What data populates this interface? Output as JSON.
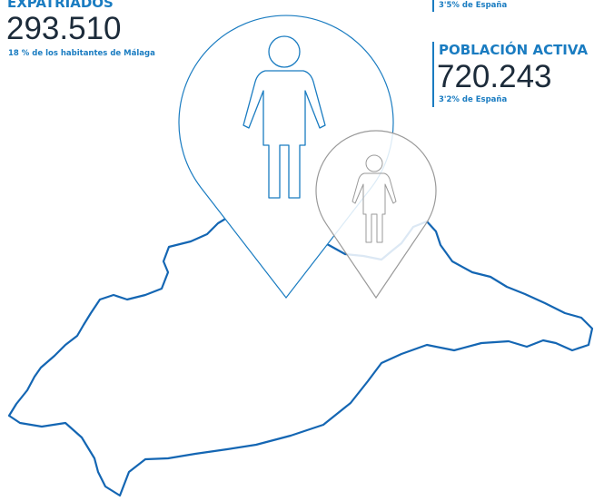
{
  "left_block": {
    "title": "EXPATRIADOS",
    "figure": "293.510",
    "note": "18 % de los habitantes de Málaga"
  },
  "top_right_block": {
    "note": "3'5% de España"
  },
  "right_block": {
    "title": "POBLACIÓN ACTIVA",
    "figure": "720.243",
    "note": "3'2% de España"
  }
}
